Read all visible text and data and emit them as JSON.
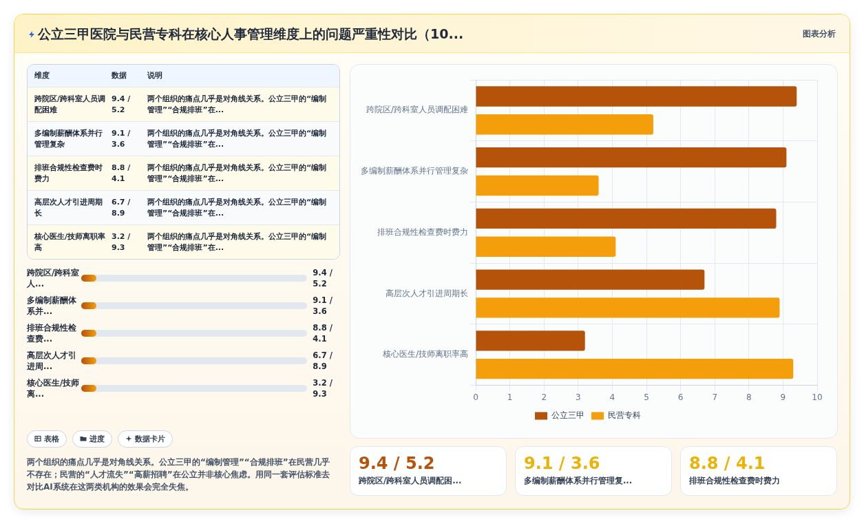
{
  "chart_data": [
    {
      "type": "bar",
      "orientation": "horizontal",
      "title": "公立三甲医院与民营专科在核心人事管理维度上的问题严重性对比（10...",
      "annotations": [
        "图表分析"
      ],
      "categories": [
        "跨院区/跨科室人员调配困难",
        "多编制薪酬体系并行管理复杂",
        "排班合规性检查费时费力",
        "高层次人才引进周期长",
        "核心医生/技师离职率高"
      ],
      "series": [
        {
          "name": "公立三甲",
          "color": "#b45309",
          "values": [
            9.4,
            9.1,
            8.8,
            6.7,
            3.2
          ]
        },
        {
          "name": "民营专科",
          "color": "#f59e0b",
          "values": [
            5.2,
            3.6,
            4.1,
            8.9,
            9.3
          ]
        }
      ],
      "xlim": [
        0,
        10
      ],
      "xticks": [
        0,
        1,
        2,
        3,
        4,
        5,
        6,
        7,
        8,
        9,
        10
      ],
      "grid": true,
      "legend": "bottom"
    },
    {
      "type": "other",
      "annotations": [
        "维度",
        "数据",
        "说明",
        "跨院区/跨科室人员调配困难",
        "9.4 / 5.2",
        "两个组织的痛点几乎是对角线关系。公立三甲的“编制管理”“合规排班”在...",
        "多编制薪酬体系并行管理复杂",
        "9.1 / 3.6",
        "两个组织的痛点几乎是对角线关系。公立三甲的“编制管理”“合规排班”在...",
        "排班合规性检查费时费力",
        "8.8 / 4.1",
        "两个组织的痛点几乎是对角线关系。公立三甲的“编制管理”“合规排班”在...",
        "高层次人才引进周期长",
        "6.7 / 8.9",
        "两个组织的痛点几乎是对角线关系。公立三甲的“编制管理”“合规排班”在...",
        "核心医生/技师离职率高",
        "3.2 / 9.3",
        "两个组织的痛点几乎是对角线关系。公立三甲的“编制管理”“合规排班”在..."
      ]
    },
    {
      "type": "other",
      "annotations": [
        "跨院区/跨科室人...",
        "9.4 / 5.2",
        "多编制薪酬体系并...",
        "9.1 / 3.6",
        "排班合规性检查费...",
        "8.8 / 4.1",
        "高层次人才引进周...",
        "6.7 / 8.9",
        "核心医生/技师离...",
        "3.2 / 9.3"
      ]
    },
    {
      "type": "other",
      "annotations": [
        "表格",
        "进度",
        "数据卡片",
        "两个组织的痛点几乎是对角线关系。公立三甲的“编制管理”“合规排班”在民营几乎不存在；民营的“人才流失”“高薪招聘”在公立并非核心焦虑。用同一套评估标准去对比AI系统在这两类机构的效果会完全失焦。"
      ]
    },
    {
      "type": "other",
      "annotations": [
        "9.4 / 5.2",
        "跨院区/跨科室人员调配困...",
        "9.1 / 3.6",
        "多编制薪酬体系并行管理复...",
        "8.8 / 4.1",
        "排班合规性检查费时费力"
      ]
    }
  ]
}
